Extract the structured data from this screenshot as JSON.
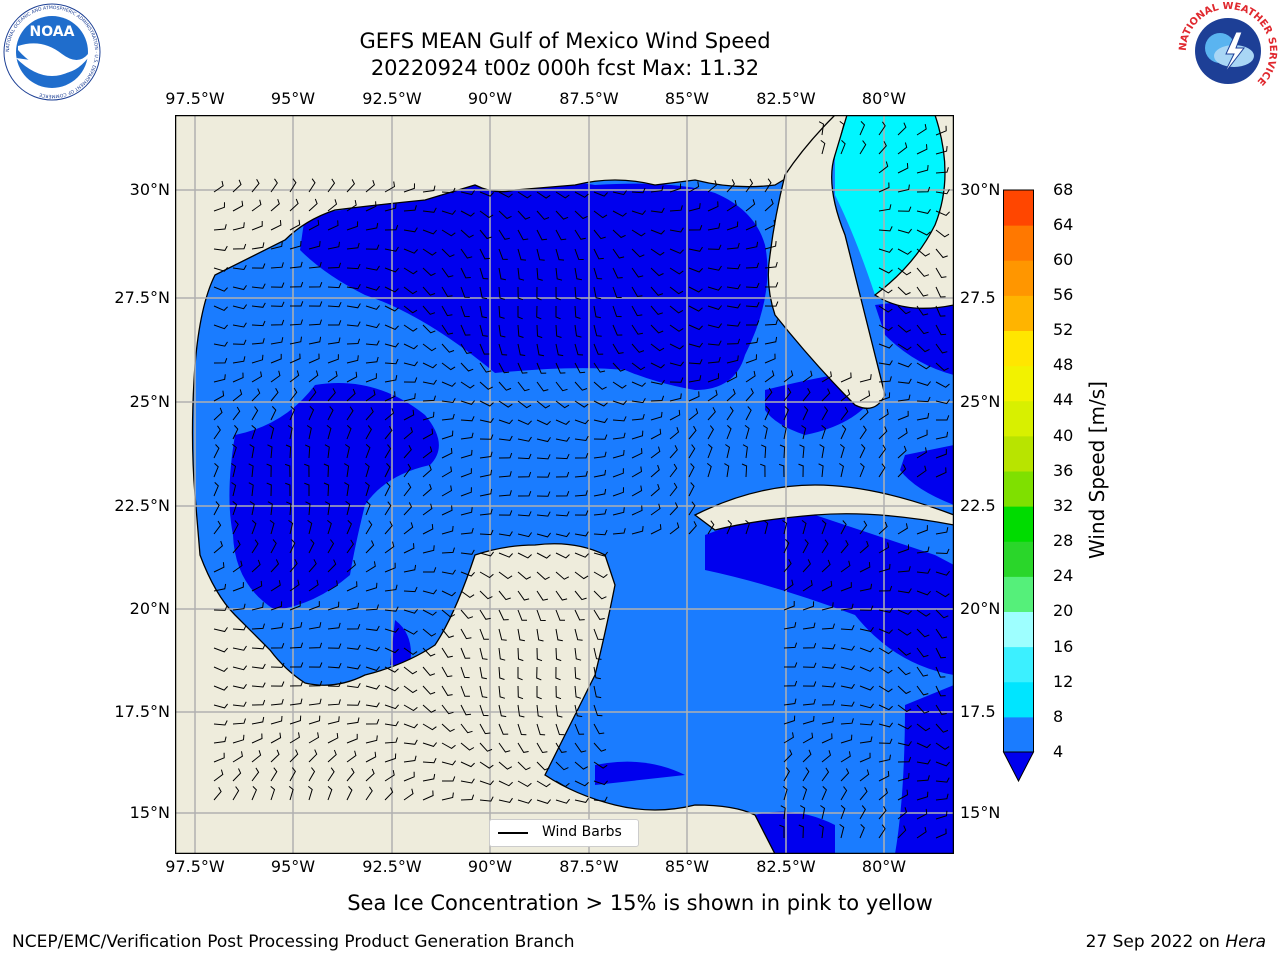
{
  "title": {
    "line1": "GEFS MEAN Gulf of Mexico Wind Speed",
    "line2": "20220924 t00z 000h fcst   Max: 11.32"
  },
  "map": {
    "lon_ticks": [
      "97.5°W",
      "95°W",
      "92.5°W",
      "90°W",
      "87.5°W",
      "85°W",
      "82.5°W",
      "80°W"
    ],
    "lat_ticks_left": [
      "30°N",
      "27.5°N",
      "25°N",
      "22.5°N",
      "20°N",
      "17.5°N",
      "15°N"
    ],
    "lat_ticks_right": [
      "30°N",
      "27.5",
      "25°N",
      "22.5",
      "20°N",
      "17.5",
      "15°N"
    ],
    "land_color": "#eeecdc",
    "grid": true,
    "legend_label": "Wind Barbs"
  },
  "colorbar": {
    "label": "Wind Speed [m/s]",
    "ticks": [
      "4",
      "8",
      "12",
      "16",
      "20",
      "24",
      "28",
      "32",
      "36",
      "40",
      "44",
      "48",
      "52",
      "56",
      "60",
      "64",
      "68"
    ],
    "colors": [
      "#1a7cff",
      "#00e5ff",
      "#3cf0ff",
      "#9effff",
      "#55f07a",
      "#2ad62a",
      "#00dc00",
      "#7fe000",
      "#b8e400",
      "#d8f000",
      "#f2f200",
      "#ffe600",
      "#ffb400",
      "#ff9600",
      "#ff7800",
      "#ff4600",
      "#ff0000"
    ],
    "under_color": "#0000ee"
  },
  "logos": {
    "noaa_text": "NOAA",
    "noaa_ring": "NATIONAL OCEANIC AND ATMOSPHERIC ADMINISTRATION · U.S. DEPARTMENT OF COMMERCE",
    "nws_ring": "NATIONAL WEATHER SERVICE"
  },
  "note": "Sea Ice Concentration > 15% is shown in pink to yellow",
  "footer": {
    "left": "NCEP/EMC/Verification Post Processing Product Generation Branch",
    "date": "27 Sep 2022 on ",
    "machine": "Hera"
  }
}
